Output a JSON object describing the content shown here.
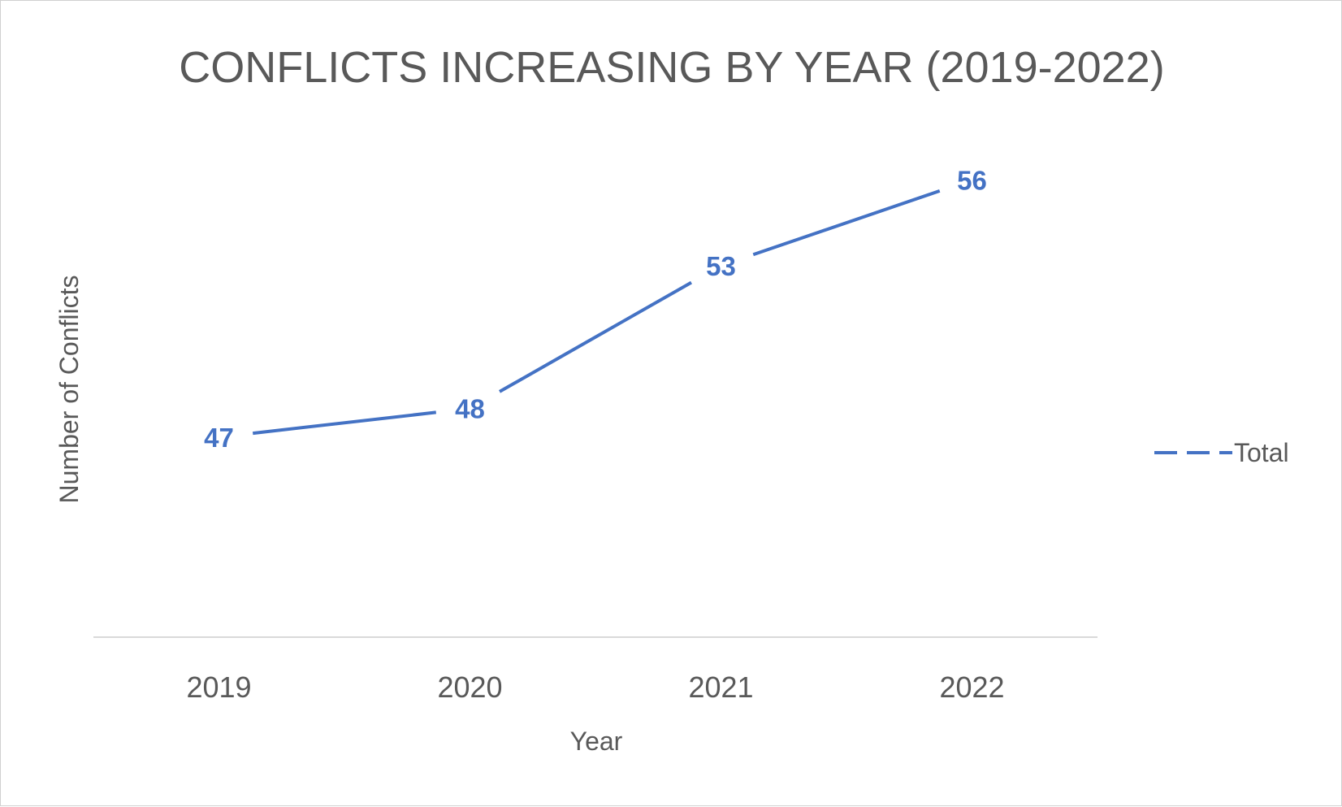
{
  "chart_data": {
    "type": "line",
    "title": "CONFLICTS INCREASING BY YEAR (2019-2022)",
    "xlabel": "Year",
    "ylabel": "Number of Conflicts",
    "categories": [
      "2019",
      "2020",
      "2021",
      "2022"
    ],
    "series": [
      {
        "name": "Total",
        "values": [
          47,
          48,
          53,
          56
        ],
        "color": "#4472c4"
      }
    ],
    "ylim": [
      40,
      58
    ],
    "grid": false,
    "legend": "right",
    "data_labels": true,
    "colors": {
      "text": "#595959",
      "axis": "#d9d9d9",
      "series": "#4472c4"
    }
  }
}
